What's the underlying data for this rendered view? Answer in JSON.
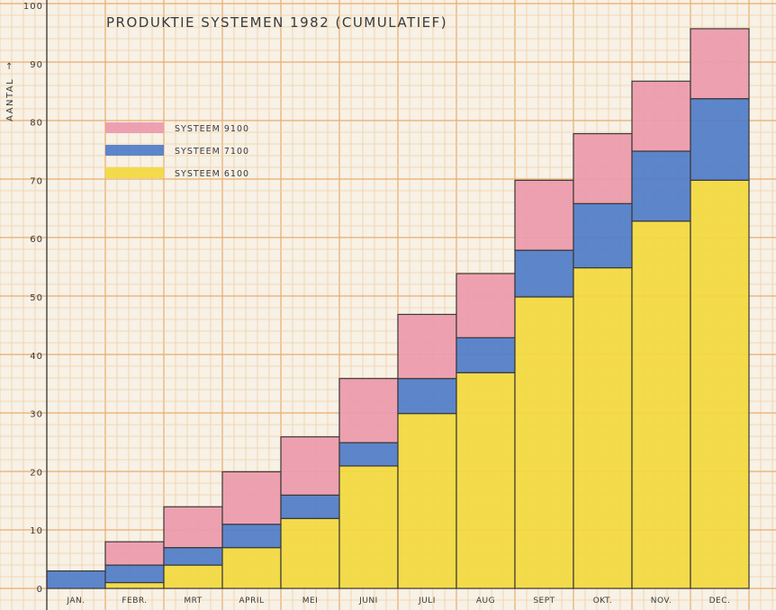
{
  "chart_data": {
    "type": "bar",
    "stacked": true,
    "title": "PRODUKTIE SYSTEMEN 1982 (CUMULATIEF)",
    "xlabel": "",
    "ylabel": "AANTAL",
    "ylabel_arrow": "↑",
    "ylim": [
      0,
      100
    ],
    "yticks": [
      0,
      10,
      20,
      30,
      40,
      50,
      60,
      70,
      80,
      90,
      100
    ],
    "grid": true,
    "legend_position": "top-left",
    "categories": [
      "JAN.",
      "FEBR.",
      "MRT",
      "APRIL",
      "MEI",
      "JUNI",
      "JULI",
      "AUG",
      "SEPT",
      "OKT.",
      "NOV.",
      "DEC."
    ],
    "series": [
      {
        "name": "SYSTEEM 6100",
        "color": "#f2d93e",
        "values": [
          0,
          1,
          4,
          7,
          12,
          21,
          30,
          37,
          50,
          55,
          63,
          70
        ]
      },
      {
        "name": "SYSTEEM 7100",
        "color": "#4f7cc8",
        "values": [
          3,
          3,
          3,
          4,
          4,
          4,
          6,
          6,
          8,
          11,
          12,
          14
        ]
      },
      {
        "name": "SYSTEEM 9100",
        "color": "#ec9aab",
        "values": [
          0,
          4,
          7,
          9,
          10,
          11,
          11,
          11,
          12,
          12,
          12,
          12
        ]
      }
    ],
    "legend_order": [
      "SYSTEEM 9100",
      "SYSTEEM 7100",
      "SYSTEEM 6100"
    ]
  },
  "colors": {
    "paper": "#f7f1e6",
    "grid_minor": "#f1cfa6",
    "grid_major": "#e9ad6c",
    "ink": "#3a3a3a"
  }
}
